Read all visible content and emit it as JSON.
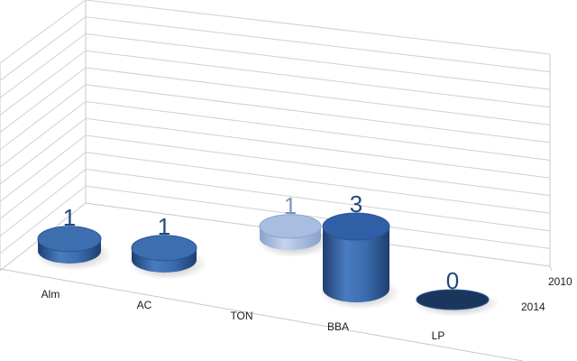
{
  "chart_data": {
    "type": "bar",
    "title": "",
    "categories": [
      "Alm",
      "AC",
      "TON",
      "BBA",
      "LP"
    ],
    "depth_categories": [
      "2010",
      "2014"
    ],
    "series": [
      {
        "values": [
          1,
          1,
          1,
          3,
          0
        ],
        "colors": [
          "#3d6fb0",
          "#3d6fb0",
          "#a9bde0",
          "#2f5fa6",
          "#1b365d"
        ]
      }
    ],
    "data_labels": [
      "1",
      "1",
      "1",
      "3",
      "0"
    ],
    "label_colors": [
      "#1f497d",
      "#1f497d",
      "#7f95bd",
      "#1f497d",
      "#1f497d"
    ],
    "ylim": [
      0,
      12
    ],
    "grid": true,
    "legend": "none"
  }
}
